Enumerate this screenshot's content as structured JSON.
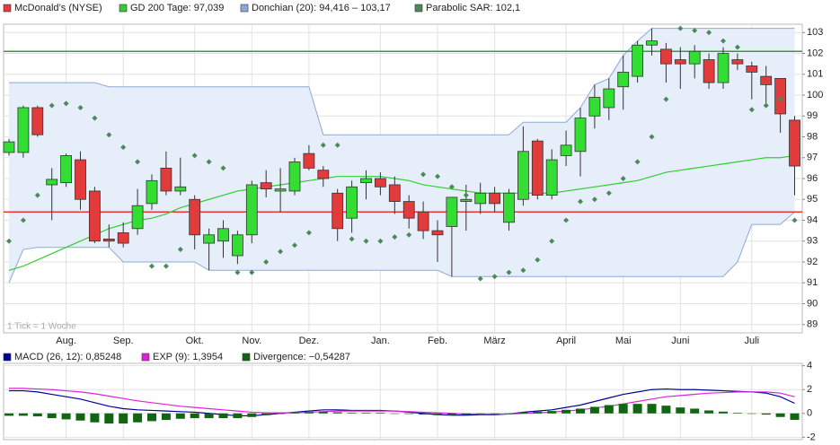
{
  "chart_data": [
    {
      "type": "candlestick",
      "categories": [
        null,
        null,
        null,
        null,
        "Aug.",
        null,
        null,
        null,
        "Sep.",
        null,
        null,
        null,
        null,
        "Okt.",
        null,
        null,
        null,
        "Nov.",
        null,
        null,
        null,
        "Dez.",
        null,
        null,
        null,
        null,
        "Jan.",
        null,
        null,
        null,
        "Feb.",
        null,
        null,
        null,
        "März",
        null,
        null,
        null,
        null,
        "April",
        null,
        null,
        null,
        "Mai",
        null,
        null,
        null,
        "Juni",
        null,
        null,
        null,
        null,
        "Juli",
        null,
        null,
        null
      ],
      "series": [
        {
          "name": "McDonald’s (NYSE)",
          "kind": "candles",
          "color": "#e23b3b",
          "up_color": "#33dd33",
          "open": [
            97.25,
            97.25,
            99.4,
            95.7,
            95.8,
            96.9,
            95.4,
            93.1,
            93.4,
            93.6,
            94.8,
            96.5,
            95.4,
            95.0,
            92.9,
            93.0,
            92.3,
            93.3,
            95.8,
            95.4,
            95.4,
            97.2,
            96.4,
            95.3,
            94.1,
            95.8,
            96.0,
            95.7,
            94.9,
            94.4,
            93.5,
            93.7,
            94.9,
            94.8,
            95.3,
            93.9,
            95.0,
            97.8,
            95.2,
            97.1,
            97.3,
            99.0,
            99.4,
            100.4,
            100.9,
            102.4,
            102.2,
            101.7,
            101.5,
            101.7,
            100.6,
            101.7,
            101.4,
            100.9,
            100.8,
            98.8
          ],
          "high": [
            97.9,
            99.5,
            99.5,
            96.5,
            97.2,
            97.3,
            95.6,
            93.8,
            93.9,
            95.5,
            96.2,
            97.3,
            97.0,
            95.2,
            93.6,
            94.0,
            93.5,
            95.9,
            96.4,
            96.5,
            97.0,
            97.6,
            96.6,
            95.5,
            95.9,
            96.4,
            96.3,
            96.1,
            95.2,
            94.9,
            94.0,
            95.1,
            95.7,
            95.8,
            95.6,
            95.5,
            98.5,
            97.9,
            97.4,
            98.3,
            99.4,
            100.5,
            100.8,
            101.9,
            102.6,
            103.2,
            102.5,
            102.3,
            102.4,
            102.0,
            102.3,
            102.0,
            101.6,
            101.4,
            100.8,
            99.0
          ],
          "low": [
            97.1,
            97.0,
            98.0,
            94.0,
            95.6,
            94.5,
            92.9,
            92.7,
            92.7,
            93.3,
            94.5,
            95.2,
            95.2,
            92.6,
            91.6,
            92.2,
            91.9,
            92.9,
            95.1,
            94.4,
            95.2,
            96.4,
            95.6,
            93.0,
            93.4,
            95.0,
            95.2,
            94.3,
            93.6,
            93.1,
            92.0,
            91.3,
            93.5,
            94.3,
            94.4,
            93.5,
            94.7,
            95.0,
            95.0,
            96.6,
            96.1,
            98.4,
            98.8,
            99.3,
            100.6,
            101.9,
            100.6,
            100.3,
            100.8,
            100.3,
            100.3,
            101.2,
            99.8,
            99.5,
            98.2,
            95.2
          ],
          "close": [
            97.76,
            99.4,
            98.1,
            95.96,
            97.1,
            95.0,
            93.0,
            93.0,
            92.9,
            94.7,
            95.9,
            95.4,
            95.6,
            93.3,
            93.3,
            93.6,
            93.3,
            95.7,
            95.5,
            95.5,
            96.8,
            96.5,
            96.0,
            93.6,
            95.6,
            96.0,
            95.6,
            94.9,
            94.1,
            93.5,
            93.3,
            95.1,
            95.0,
            95.3,
            94.8,
            95.3,
            97.3,
            95.2,
            96.9,
            97.6,
            98.9,
            99.9,
            100.3,
            101.1,
            102.4,
            102.6,
            101.5,
            101.5,
            102.1,
            100.6,
            102.0,
            101.5,
            101.1,
            100.5,
            99.1,
            96.6
          ]
        },
        {
          "name": "GD 200 Tage: 97,039",
          "kind": "line",
          "color": "#33cc33",
          "values": [
            91.6,
            91.8,
            92.1,
            92.4,
            92.7,
            93.0,
            93.3,
            93.6,
            93.8,
            94.0,
            94.1,
            94.3,
            94.6,
            94.8,
            95.0,
            95.2,
            95.4,
            95.5,
            95.6,
            95.7,
            95.8,
            95.9,
            96.0,
            96.1,
            96.1,
            96.1,
            96.1,
            96.0,
            95.9,
            95.7,
            95.6,
            95.5,
            95.4,
            95.3,
            95.3,
            95.3,
            95.3,
            95.3,
            95.3,
            95.4,
            95.5,
            95.6,
            95.7,
            95.8,
            95.9,
            96.1,
            96.3,
            96.4,
            96.5,
            96.6,
            96.7,
            96.8,
            96.9,
            97.0,
            97.0,
            97.1
          ]
        },
        {
          "name": "Donchian (20): 94,416 – 103,17",
          "kind": "band",
          "color": "#8fa8d8",
          "fill": "#e6eefa",
          "upper": [
            100.6,
            100.6,
            100.6,
            100.6,
            100.6,
            100.6,
            100.6,
            100.4,
            100.4,
            100.4,
            100.4,
            100.4,
            100.4,
            100.4,
            100.4,
            100.4,
            100.4,
            100.4,
            100.4,
            100.4,
            100.4,
            100.4,
            98.1,
            98.1,
            98.1,
            98.1,
            98.1,
            98.1,
            98.1,
            98.1,
            98.1,
            98.1,
            98.1,
            98.1,
            98.1,
            98.1,
            98.7,
            98.7,
            98.7,
            98.7,
            99.4,
            100.5,
            100.8,
            101.9,
            102.6,
            103.2,
            103.2,
            103.2,
            103.2,
            103.2,
            103.2,
            103.2,
            103.2,
            103.2,
            103.2,
            103.2
          ],
          "lower": [
            91.0,
            92.6,
            92.7,
            92.7,
            92.7,
            92.7,
            92.7,
            92.7,
            92.0,
            92.0,
            92.0,
            92.0,
            92.0,
            92.0,
            91.6,
            91.6,
            91.6,
            91.6,
            91.6,
            91.6,
            91.6,
            91.6,
            91.6,
            91.6,
            91.6,
            91.6,
            91.6,
            91.6,
            91.6,
            91.6,
            91.6,
            91.3,
            91.3,
            91.3,
            91.3,
            91.3,
            91.3,
            91.3,
            91.3,
            91.3,
            91.3,
            91.3,
            91.3,
            91.3,
            91.3,
            91.3,
            91.3,
            91.3,
            91.3,
            91.3,
            91.3,
            92.0,
            93.8,
            93.8,
            93.8,
            94.4
          ]
        },
        {
          "name": "Parabolic SAR: 102,1",
          "kind": "dots",
          "color": "#4a8a5a",
          "values": [
            93.0,
            94.0,
            95.2,
            99.5,
            99.6,
            99.4,
            98.9,
            98.1,
            97.5,
            96.8,
            91.8,
            91.8,
            92.6,
            97.1,
            96.8,
            96.5,
            91.5,
            91.5,
            92.0,
            92.5,
            92.8,
            93.4,
            97.6,
            97.6,
            93.1,
            93.0,
            93.0,
            93.2,
            93.3,
            96.2,
            96.1,
            95.6,
            95.2,
            91.2,
            91.3,
            91.5,
            91.6,
            92.1,
            93.0,
            94.0,
            94.9,
            95.0,
            95.3,
            96.0,
            96.8,
            98.0,
            99.8,
            103.2,
            103.1,
            103.0,
            102.6,
            102.3,
            99.3,
            99.5,
            99.8,
            94.0
          ]
        }
      ],
      "hlines": [
        {
          "value": 102.1,
          "color": "#3a9a3a"
        },
        {
          "value": 94.4,
          "color": "#ee3333"
        }
      ],
      "ylim": [
        88.6,
        103.4
      ],
      "yticks": [
        89,
        90,
        91,
        92,
        93,
        94,
        95,
        96,
        97,
        98,
        99,
        100,
        101,
        102,
        103
      ],
      "grid": true,
      "note": "1 Tick = 1 Woche"
    },
    {
      "type": "macd",
      "series": [
        {
          "name": "MACD (26, 12): 0,85248",
          "kind": "line",
          "color": "#000099",
          "values": [
            1.9,
            1.9,
            1.8,
            1.6,
            1.4,
            1.2,
            0.9,
            0.6,
            0.4,
            0.3,
            0.25,
            0.2,
            0.15,
            0.1,
            0,
            -0.1,
            -0.2,
            -0.2,
            -0.1,
            0,
            0.1,
            0.2,
            0.3,
            0.3,
            0.25,
            0.25,
            0.25,
            0.2,
            0.1,
            0,
            -0.1,
            -0.15,
            -0.15,
            -0.1,
            -0.1,
            -0.05,
            0.1,
            0.2,
            0.3,
            0.5,
            0.7,
            1.0,
            1.3,
            1.6,
            1.8,
            2.0,
            2.05,
            2.0,
            2.0,
            1.95,
            1.9,
            1.85,
            1.8,
            1.7,
            1.4,
            0.85
          ]
        },
        {
          "name": "EXP (9): 1,3954",
          "kind": "line",
          "color": "#dd22dd",
          "values": [
            2.1,
            2.1,
            2.05,
            2.0,
            1.9,
            1.8,
            1.65,
            1.45,
            1.25,
            1.05,
            0.9,
            0.75,
            0.6,
            0.5,
            0.4,
            0.3,
            0.2,
            0.1,
            0.05,
            0.05,
            0.05,
            0.1,
            0.15,
            0.2,
            0.2,
            0.2,
            0.2,
            0.2,
            0.15,
            0.1,
            0.05,
            0,
            -0.05,
            -0.05,
            -0.05,
            -0.05,
            0,
            0.05,
            0.1,
            0.2,
            0.3,
            0.45,
            0.6,
            0.8,
            1.0,
            1.2,
            1.4,
            1.5,
            1.6,
            1.7,
            1.75,
            1.8,
            1.8,
            1.8,
            1.7,
            1.4
          ]
        },
        {
          "name": "Divergence: −0,54287",
          "kind": "bars",
          "color": "#116611",
          "values": [
            -0.2,
            -0.2,
            -0.25,
            -0.4,
            -0.5,
            -0.6,
            -0.75,
            -0.85,
            -0.85,
            -0.75,
            -0.65,
            -0.55,
            -0.45,
            -0.4,
            -0.4,
            -0.4,
            -0.4,
            -0.3,
            -0.15,
            -0.05,
            0.05,
            0.1,
            0.15,
            0.1,
            0.05,
            0.05,
            0.05,
            0,
            -0.05,
            -0.1,
            -0.15,
            -0.15,
            -0.1,
            -0.05,
            -0.05,
            0,
            0.1,
            0.15,
            0.2,
            0.3,
            0.4,
            0.55,
            0.7,
            0.8,
            0.8,
            0.8,
            0.65,
            0.5,
            0.4,
            0.25,
            0.15,
            0.05,
            0,
            -0.1,
            -0.3,
            -0.54
          ]
        }
      ],
      "ylim": [
        -2.2,
        4.2
      ],
      "yticks": [
        -2,
        0,
        2,
        4
      ],
      "grid": true
    }
  ]
}
